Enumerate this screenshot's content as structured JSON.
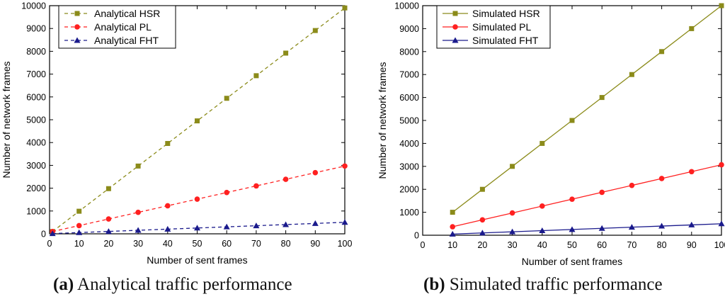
{
  "chart_data": [
    {
      "type": "line",
      "title": "",
      "xlabel": "Number of sent frames",
      "ylabel": "Number of network frames",
      "xlim": [
        0,
        100
      ],
      "ylim": [
        0,
        10000
      ],
      "xticks": [
        0,
        10,
        20,
        30,
        40,
        50,
        60,
        70,
        80,
        90,
        100
      ],
      "yticks": [
        0,
        1000,
        2000,
        3000,
        4000,
        5000,
        6000,
        7000,
        8000,
        9000,
        10000
      ],
      "grid": false,
      "legend_position": "top-left",
      "line_style": "dashed",
      "series": [
        {
          "name": "Analytical HSR",
          "color": "#8b8b1a",
          "marker": "square",
          "x": [
            1,
            10,
            20,
            30,
            40,
            50,
            60,
            70,
            80,
            90,
            100
          ],
          "values": [
            99,
            990,
            1980,
            2970,
            3960,
            4950,
            5940,
            6930,
            7920,
            8910,
            9900
          ]
        },
        {
          "name": "Analytical PL",
          "color": "#ff2020",
          "marker": "circle",
          "x": [
            1,
            10,
            20,
            30,
            40,
            50,
            60,
            70,
            80,
            90,
            100
          ],
          "values": [
            100,
            360,
            650,
            940,
            1230,
            1520,
            1810,
            2100,
            2390,
            2680,
            2970
          ]
        },
        {
          "name": "Analytical FHT",
          "color": "#1a1a8c",
          "marker": "triangle",
          "x": [
            1,
            10,
            20,
            30,
            40,
            50,
            60,
            70,
            80,
            90,
            100
          ],
          "values": [
            10,
            55,
            105,
            155,
            205,
            255,
            305,
            355,
            405,
            455,
            505
          ]
        }
      ]
    },
    {
      "type": "line",
      "title": "",
      "xlabel": "Number of sent frames",
      "ylabel": "Number of network frames",
      "xlim": [
        0,
        100
      ],
      "ylim": [
        0,
        10000
      ],
      "xticks": [
        0,
        10,
        20,
        30,
        40,
        50,
        60,
        70,
        80,
        90,
        100
      ],
      "yticks": [
        0,
        1000,
        2000,
        3000,
        4000,
        5000,
        6000,
        7000,
        8000,
        9000,
        10000
      ],
      "grid": false,
      "legend_position": "top-left",
      "line_style": "solid",
      "series": [
        {
          "name": "Simulated HSR",
          "color": "#8b8b1a",
          "marker": "square",
          "x": [
            10,
            20,
            30,
            40,
            50,
            60,
            70,
            80,
            90,
            100
          ],
          "values": [
            1000,
            2000,
            3000,
            4000,
            5000,
            6000,
            7000,
            8000,
            9000,
            10000
          ]
        },
        {
          "name": "Simulated PL",
          "color": "#ff2020",
          "marker": "circle",
          "x": [
            10,
            20,
            30,
            40,
            50,
            60,
            70,
            80,
            90,
            100
          ],
          "values": [
            370,
            670,
            970,
            1270,
            1570,
            1870,
            2170,
            2470,
            2770,
            3070
          ]
        },
        {
          "name": "Simulated FHT",
          "color": "#1a1a8c",
          "marker": "triangle",
          "x": [
            10,
            20,
            30,
            40,
            50,
            60,
            70,
            80,
            90,
            100
          ],
          "values": [
            50,
            100,
            150,
            200,
            250,
            300,
            350,
            400,
            450,
            500
          ]
        }
      ]
    }
  ],
  "captions": [
    {
      "letter": "(a)",
      "text": "Analytical traffic performance"
    },
    {
      "letter": "(b)",
      "text": "Simulated traffic performance"
    }
  ]
}
